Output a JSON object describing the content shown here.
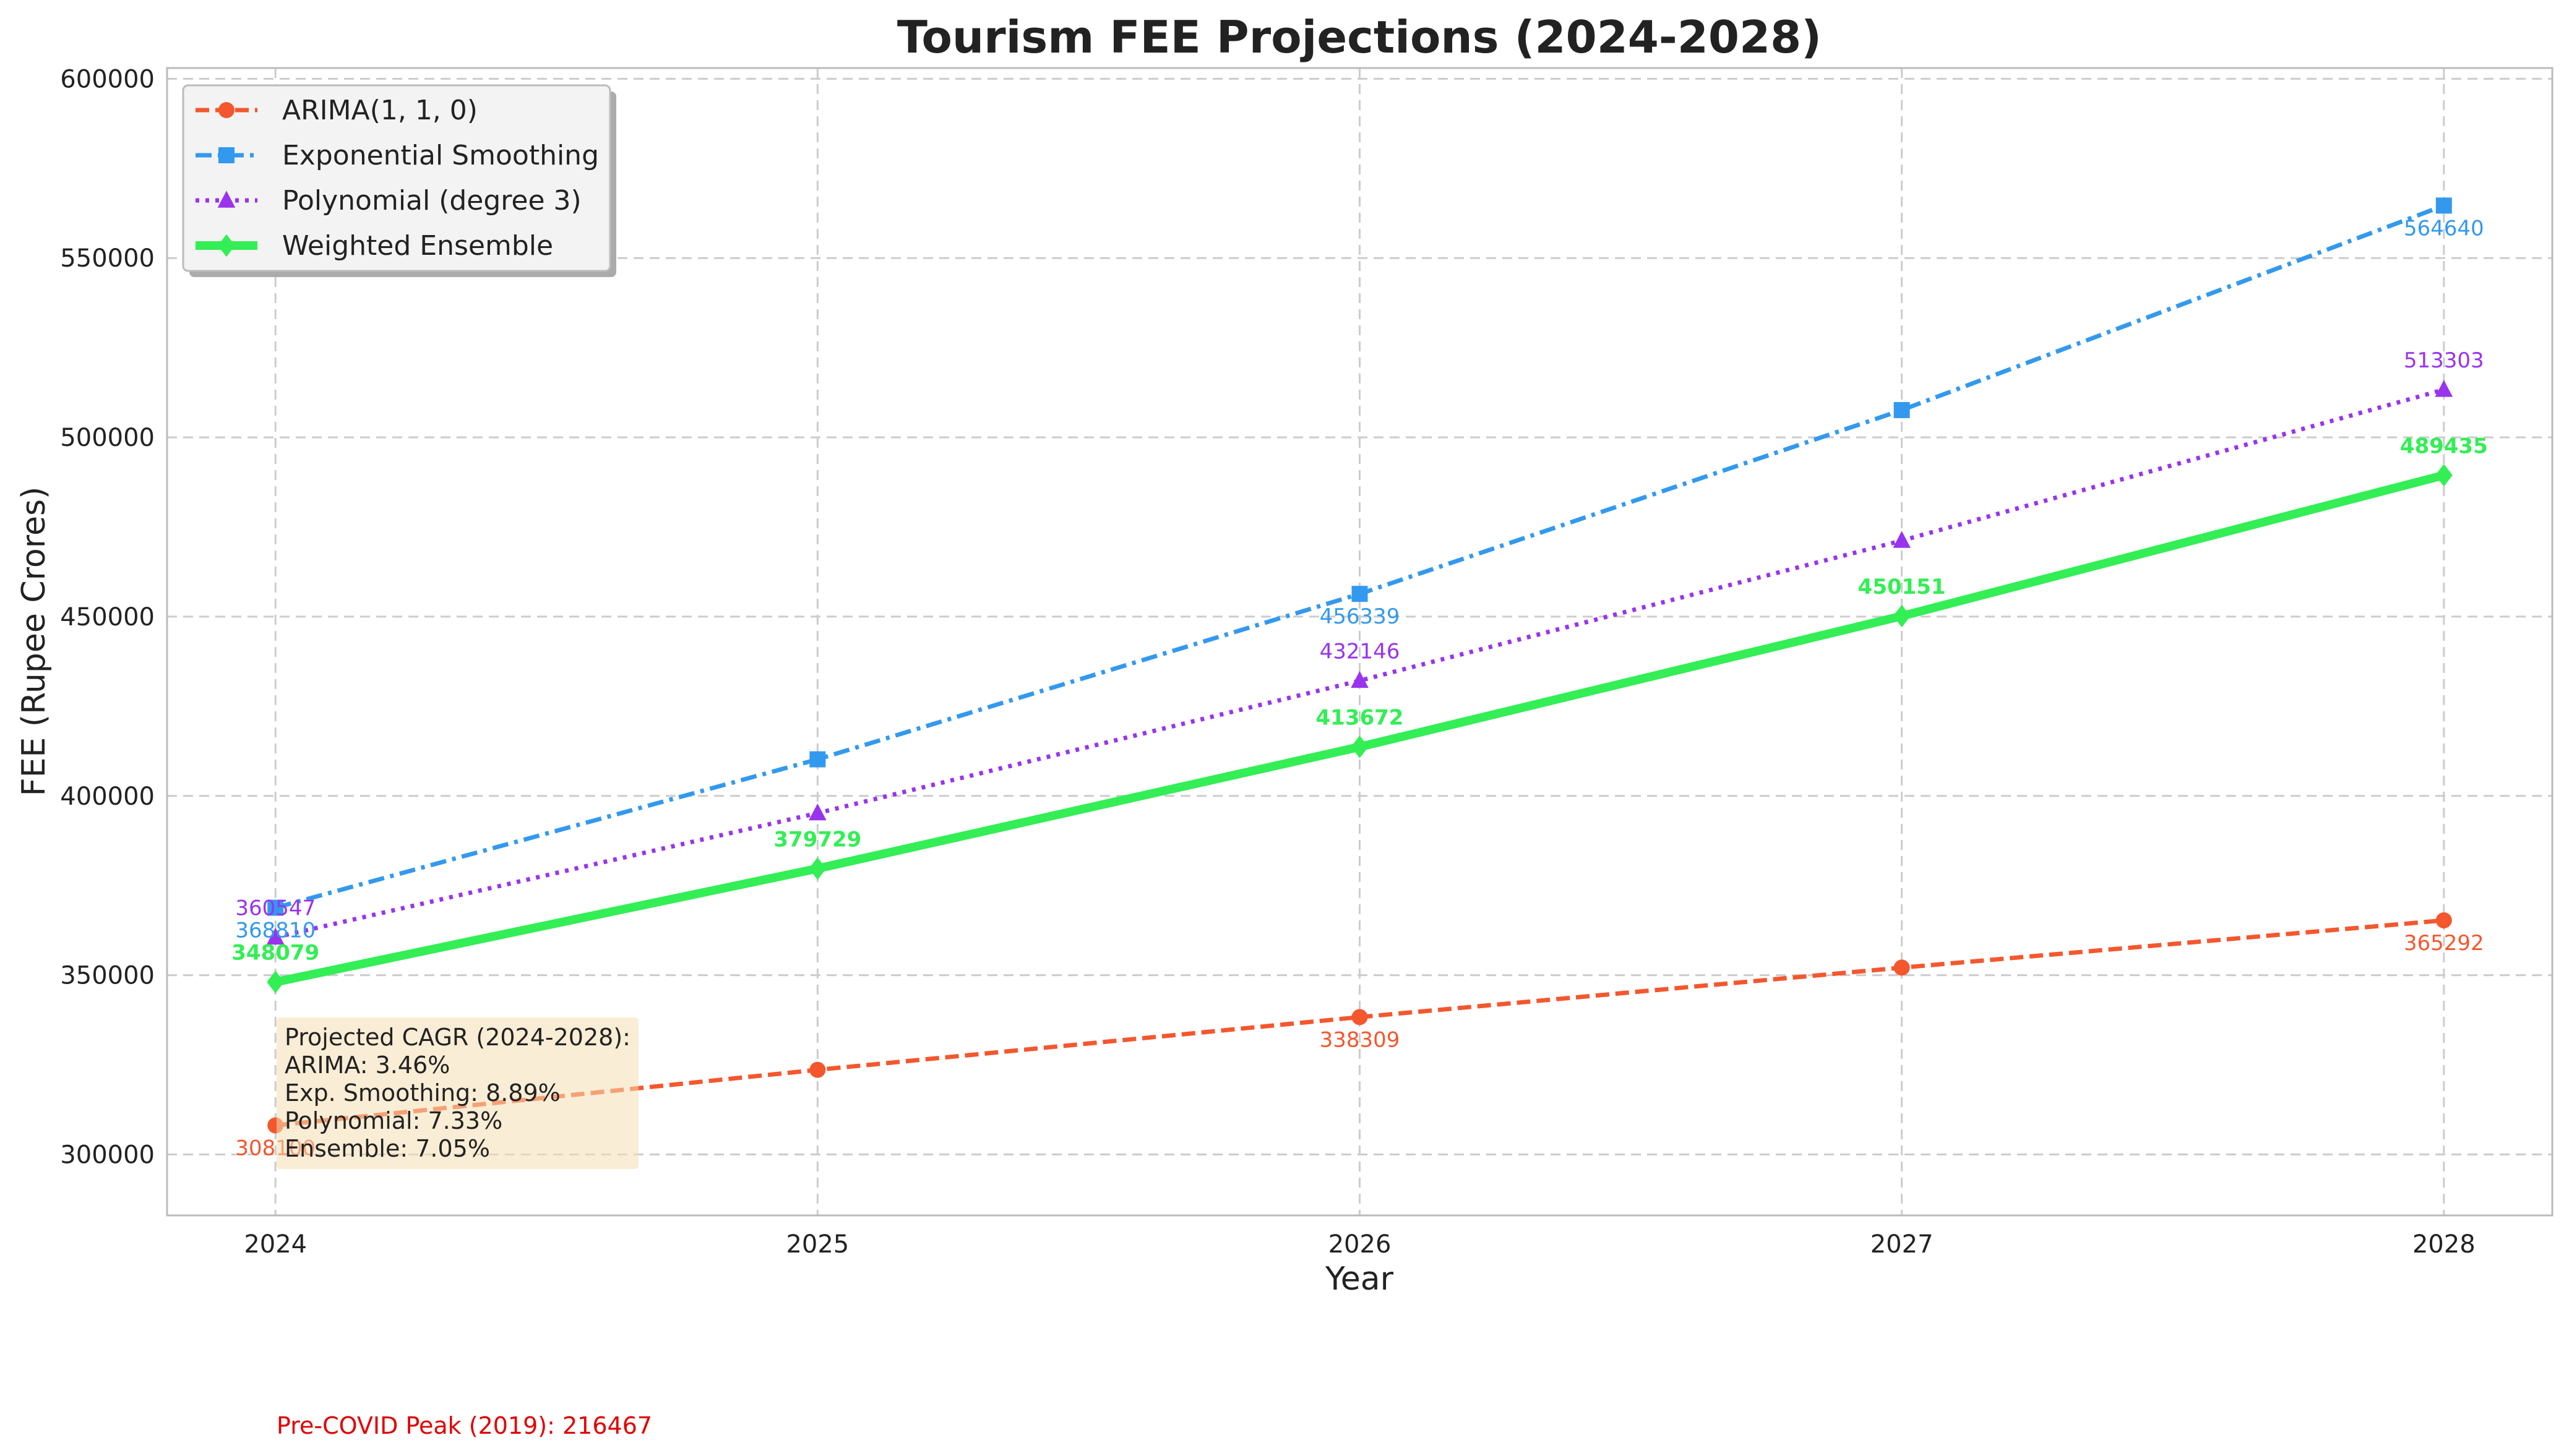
{
  "chart_data": {
    "type": "line",
    "title": "Tourism FEE Projections (2024-2028)",
    "xlabel": "Year",
    "ylabel": "FEE (Rupee Crores)",
    "x": [
      2024,
      2025,
      2026,
      2027,
      2028
    ],
    "xlim": [
      2023.8,
      2028.2
    ],
    "ylim": [
      283000,
      603000
    ],
    "yticks": [
      300000,
      350000,
      400000,
      450000,
      500000,
      550000,
      600000
    ],
    "grid": true,
    "legend_position": "top-left",
    "series": [
      {
        "name": "ARIMA(1, 1, 0)",
        "color": "#f4572e",
        "dash": "dashed",
        "marker": "circle",
        "values": [
          308100,
          323600,
          338309,
          352100,
          365292
        ],
        "labels": [
          "308100",
          "",
          "338309",
          "",
          "365292"
        ],
        "label_bold": false,
        "label_side": "below"
      },
      {
        "name": "Exponential Smoothing",
        "color": "#3399ee",
        "dash": "dashdot",
        "marker": "square",
        "values": [
          368810,
          410200,
          456339,
          507600,
          564640
        ],
        "labels": [
          "368810",
          "",
          "456339",
          "",
          "564640"
        ],
        "label_bold": false,
        "label_side": "below"
      },
      {
        "name": "Polynomial (degree 3)",
        "color": "#9933ee",
        "dash": "dotted",
        "marker": "triangle",
        "values": [
          360547,
          395200,
          432146,
          471200,
          513303
        ],
        "labels": [
          "360547",
          "",
          "432146",
          "",
          "513303"
        ],
        "label_bold": false,
        "label_side": "above"
      },
      {
        "name": "Weighted Ensemble",
        "color": "#33ee55",
        "dash": "solid",
        "marker": "diamond",
        "values": [
          348079,
          379729,
          413672,
          450151,
          489435
        ],
        "labels": [
          "348079",
          "379729",
          "413672",
          "450151",
          "489435"
        ],
        "label_bold": true,
        "label_side": "above"
      }
    ],
    "annotations": {
      "cagr_box": [
        "Projected CAGR (2024-2028):",
        "ARIMA: 3.46%",
        "Exp. Smoothing: 8.89%",
        "Polynomial: 7.33%",
        "Ensemble: 7.05%"
      ],
      "cagr_box_color": "#f5deb3",
      "note": "Pre-COVID Peak (2019): 216467",
      "note_color": "#e00000"
    }
  }
}
